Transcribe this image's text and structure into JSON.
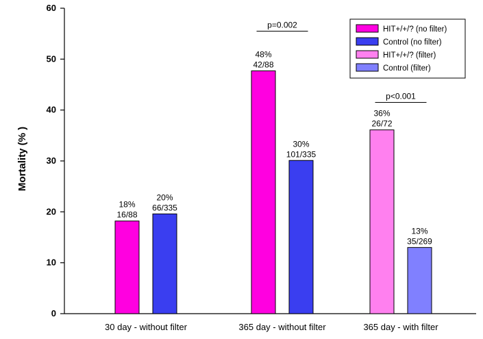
{
  "chart_data": {
    "type": "bar",
    "title": "",
    "xlabel": "",
    "ylabel": "Mortality (% )",
    "ylim": [
      0,
      60
    ],
    "yticks": [
      0,
      10,
      20,
      30,
      40,
      50,
      60
    ],
    "grid": false,
    "legend_position": "top-right",
    "categories": [
      "30 day - without filter",
      "365 day - without filter",
      "365 day - with filter"
    ],
    "series": [
      {
        "name": "HIT+/+/? (no filter)",
        "color": "#ff00e0",
        "values": [
          18.2,
          47.7,
          null
        ],
        "labels": [
          "18%",
          "48%",
          null
        ],
        "counts": [
          "16/88",
          "42/88",
          null
        ]
      },
      {
        "name": "Control (no filter)",
        "color": "#3a3ef0",
        "values": [
          19.6,
          30.1,
          null
        ],
        "labels": [
          "20%",
          "30%",
          null
        ],
        "counts": [
          "66/335",
          "101/335",
          null
        ]
      },
      {
        "name": "HIT+/+/? (filter)",
        "color": "#ff80ef",
        "values": [
          null,
          null,
          36.1
        ],
        "labels": [
          null,
          null,
          "36%"
        ],
        "counts": [
          null,
          null,
          "26/72"
        ]
      },
      {
        "name": "Control (filter)",
        "color": "#8080ff",
        "values": [
          null,
          null,
          13.0
        ],
        "labels": [
          null,
          null,
          "13%"
        ],
        "counts": [
          null,
          null,
          "35/269"
        ]
      }
    ],
    "annotations": [
      {
        "text": "p=0.002",
        "category": 1,
        "y": 55.5
      },
      {
        "text": "p<0.001",
        "category": 2,
        "y": 41.5
      }
    ]
  }
}
